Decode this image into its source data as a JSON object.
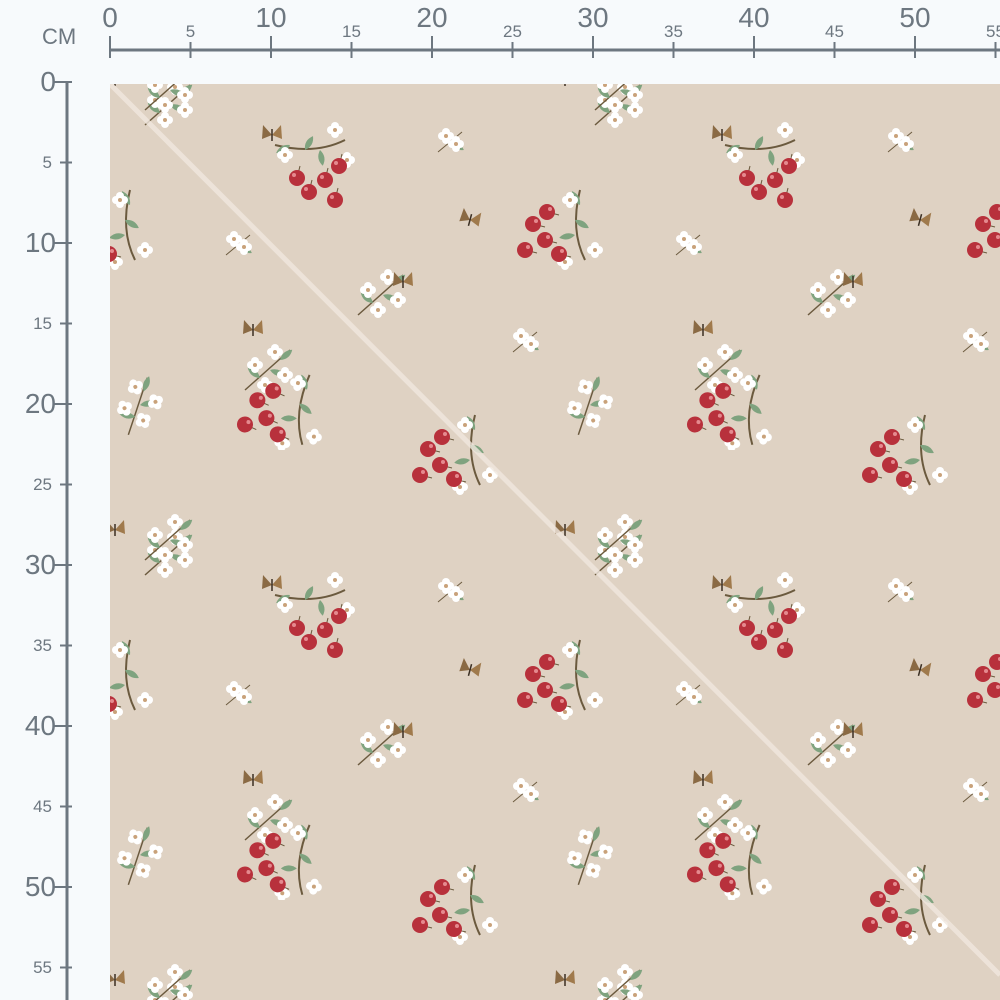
{
  "ruler": {
    "unit": "CM",
    "top_labels": [
      "0",
      "5",
      "10",
      "15",
      "20",
      "25",
      "30",
      "35",
      "40",
      "45",
      "50",
      "55"
    ],
    "left_labels": [
      "0",
      "5",
      "10",
      "15",
      "20",
      "25",
      "30",
      "35",
      "40",
      "45",
      "50",
      "55"
    ]
  },
  "colors": {
    "fabric_background": "#dfd2c3",
    "ruler": "#6d7780",
    "cherry": "#b8313c",
    "leaf": "#7fa37f",
    "flower": "#ffffff",
    "butterfly": "#8a6a44"
  },
  "motifs": [
    "cherry-cluster",
    "flower-sprig",
    "small-flower",
    "butterfly"
  ]
}
